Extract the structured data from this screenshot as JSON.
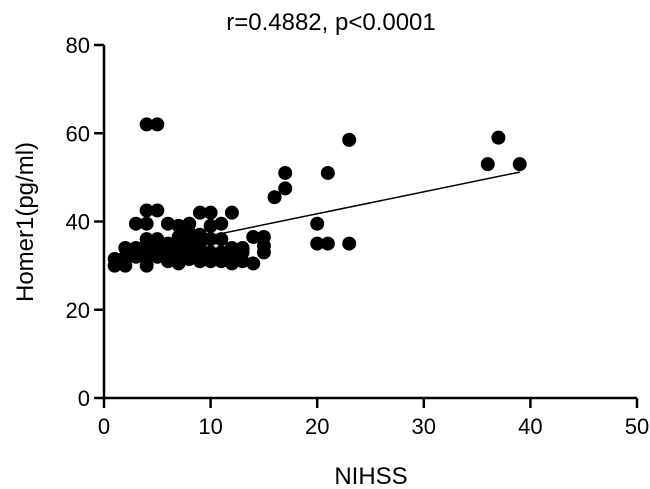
{
  "chart_data": {
    "type": "scatter",
    "title": "r=0.4882, p<0.0001",
    "xlabel": "NIHSS",
    "ylabel": "Homer1(pg/ml)",
    "xlim": [
      0,
      50
    ],
    "ylim": [
      0,
      80
    ],
    "xticks": [
      "0",
      "10",
      "20",
      "30",
      "40",
      "50"
    ],
    "yticks": [
      "0",
      "20",
      "40",
      "60",
      "80"
    ],
    "grid": false,
    "point_color": "#000000",
    "points": [
      {
        "x": 1,
        "y": 30
      },
      {
        "x": 1,
        "y": 31.5
      },
      {
        "x": 2,
        "y": 30
      },
      {
        "x": 2,
        "y": 32
      },
      {
        "x": 2,
        "y": 34
      },
      {
        "x": 3,
        "y": 32
      },
      {
        "x": 3,
        "y": 34
      },
      {
        "x": 3,
        "y": 39.5
      },
      {
        "x": 4,
        "y": 30
      },
      {
        "x": 4,
        "y": 32
      },
      {
        "x": 4,
        "y": 34
      },
      {
        "x": 4,
        "y": 36
      },
      {
        "x": 4,
        "y": 39.5
      },
      {
        "x": 4,
        "y": 42.5
      },
      {
        "x": 4,
        "y": 62
      },
      {
        "x": 5,
        "y": 32
      },
      {
        "x": 5,
        "y": 34
      },
      {
        "x": 5,
        "y": 36
      },
      {
        "x": 5,
        "y": 42.5
      },
      {
        "x": 5,
        "y": 62
      },
      {
        "x": 6,
        "y": 31
      },
      {
        "x": 6,
        "y": 33
      },
      {
        "x": 6,
        "y": 35
      },
      {
        "x": 6,
        "y": 39.5
      },
      {
        "x": 7,
        "y": 30.5
      },
      {
        "x": 7,
        "y": 32.5
      },
      {
        "x": 7,
        "y": 34.5
      },
      {
        "x": 7,
        "y": 36.5
      },
      {
        "x": 7,
        "y": 39
      },
      {
        "x": 8,
        "y": 31.5
      },
      {
        "x": 8,
        "y": 33.5
      },
      {
        "x": 8,
        "y": 35.5
      },
      {
        "x": 8,
        "y": 37.5
      },
      {
        "x": 8,
        "y": 39.5
      },
      {
        "x": 9,
        "y": 31
      },
      {
        "x": 9,
        "y": 33
      },
      {
        "x": 9,
        "y": 35
      },
      {
        "x": 9,
        "y": 37
      },
      {
        "x": 9,
        "y": 42
      },
      {
        "x": 10,
        "y": 31
      },
      {
        "x": 10,
        "y": 33
      },
      {
        "x": 10,
        "y": 36
      },
      {
        "x": 10,
        "y": 39
      },
      {
        "x": 10,
        "y": 42
      },
      {
        "x": 11,
        "y": 31
      },
      {
        "x": 11,
        "y": 33
      },
      {
        "x": 11,
        "y": 36
      },
      {
        "x": 11,
        "y": 39.5
      },
      {
        "x": 12,
        "y": 30.5
      },
      {
        "x": 12,
        "y": 32
      },
      {
        "x": 12,
        "y": 34
      },
      {
        "x": 12,
        "y": 42
      },
      {
        "x": 13,
        "y": 31
      },
      {
        "x": 13,
        "y": 33
      },
      {
        "x": 13,
        "y": 34
      },
      {
        "x": 14,
        "y": 30.5
      },
      {
        "x": 14,
        "y": 36.5
      },
      {
        "x": 15,
        "y": 33
      },
      {
        "x": 15,
        "y": 34.5
      },
      {
        "x": 15,
        "y": 36.5
      },
      {
        "x": 16,
        "y": 45.5
      },
      {
        "x": 17,
        "y": 47.5
      },
      {
        "x": 17,
        "y": 51
      },
      {
        "x": 20,
        "y": 35
      },
      {
        "x": 20,
        "y": 39.5
      },
      {
        "x": 21,
        "y": 35
      },
      {
        "x": 21,
        "y": 51
      },
      {
        "x": 23,
        "y": 35
      },
      {
        "x": 23,
        "y": 58.5
      },
      {
        "x": 36,
        "y": 53
      },
      {
        "x": 37,
        "y": 59
      },
      {
        "x": 39,
        "y": 53
      }
    ],
    "trendline": {
      "x": [
        1,
        39
      ],
      "y": [
        32.3,
        51.2
      ]
    }
  }
}
